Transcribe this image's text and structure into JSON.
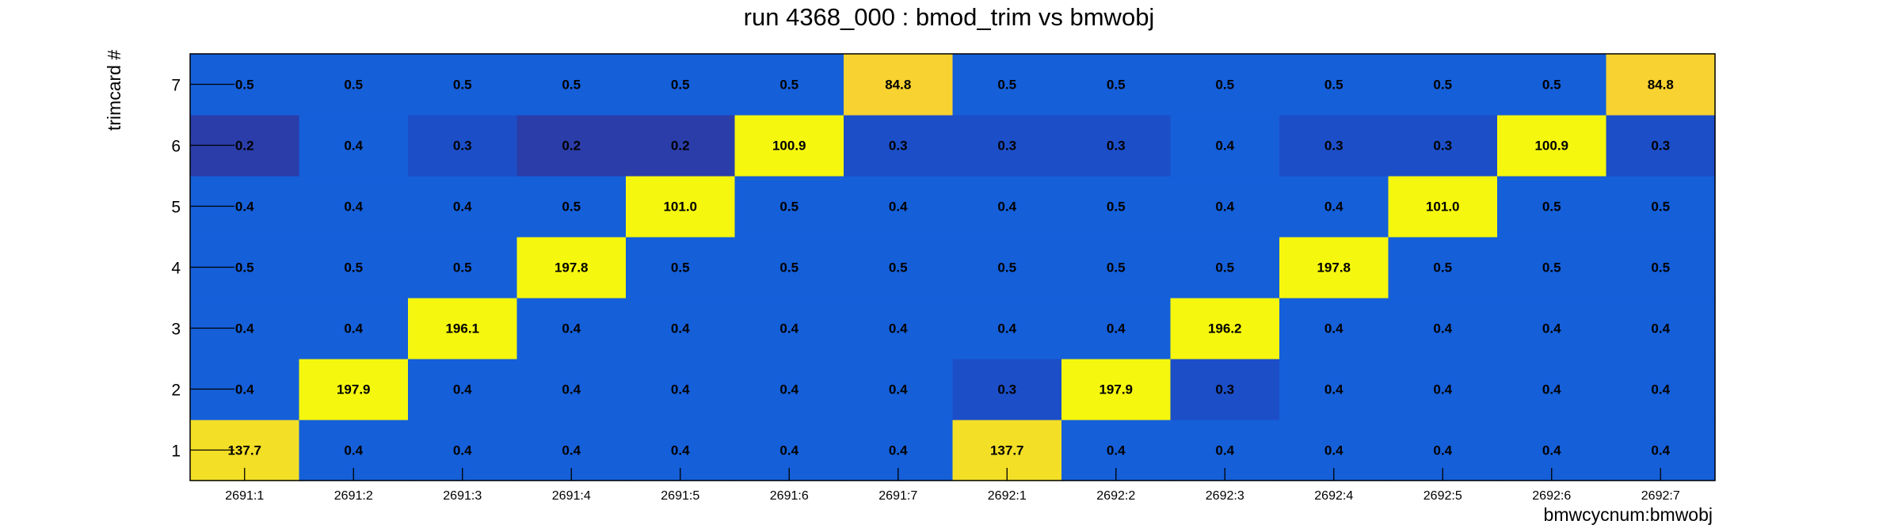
{
  "chart_data": {
    "type": "heatmap",
    "title": "run 4368_000 : bmod_trim vs bmwobj",
    "xlabel": "bmwcycnum:bmwobj",
    "ylabel": "trimcard #",
    "x": [
      "2691:1",
      "2691:2",
      "2691:3",
      "2691:4",
      "2691:5",
      "2691:6",
      "2691:7",
      "2692:1",
      "2692:2",
      "2692:3",
      "2692:4",
      "2692:5",
      "2692:6",
      "2692:7"
    ],
    "y": [
      "1",
      "2",
      "3",
      "4",
      "5",
      "6",
      "7"
    ],
    "values": [
      [
        "137.7",
        "0.4",
        "0.4",
        "0.4",
        "0.4",
        "0.4",
        "0.4",
        "137.7",
        "0.4",
        "0.4",
        "0.4",
        "0.4",
        "0.4",
        "0.4"
      ],
      [
        "0.4",
        "197.9",
        "0.4",
        "0.4",
        "0.4",
        "0.4",
        "0.4",
        "0.3",
        "197.9",
        "0.3",
        "0.4",
        "0.4",
        "0.4",
        "0.4"
      ],
      [
        "0.4",
        "0.4",
        "196.1",
        "0.4",
        "0.4",
        "0.4",
        "0.4",
        "0.4",
        "0.4",
        "196.2",
        "0.4",
        "0.4",
        "0.4",
        "0.4"
      ],
      [
        "0.5",
        "0.5",
        "0.5",
        "197.8",
        "0.5",
        "0.5",
        "0.5",
        "0.5",
        "0.5",
        "0.5",
        "197.8",
        "0.5",
        "0.5",
        "0.5"
      ],
      [
        "0.4",
        "0.4",
        "0.4",
        "0.5",
        "101.0",
        "0.5",
        "0.4",
        "0.4",
        "0.5",
        "0.4",
        "0.4",
        "101.0",
        "0.5",
        "0.5"
      ],
      [
        "0.2",
        "0.4",
        "0.3",
        "0.2",
        "0.2",
        "100.9",
        "0.3",
        "0.3",
        "0.3",
        "0.4",
        "0.3",
        "0.3",
        "100.9",
        "0.3"
      ],
      [
        "0.5",
        "0.5",
        "0.5",
        "0.5",
        "0.5",
        "0.5",
        "84.8",
        "0.5",
        "0.5",
        "0.5",
        "0.5",
        "0.5",
        "0.5",
        "84.8"
      ]
    ],
    "colors": {
      "high": "#f5f70e",
      "upper": "#f4df27",
      "mid_high": "#f8d230",
      "mid": "#155fd9",
      "low": "#1c4ec8",
      "lowest": "#2a3da8"
    },
    "grid": false,
    "legend": "none"
  }
}
